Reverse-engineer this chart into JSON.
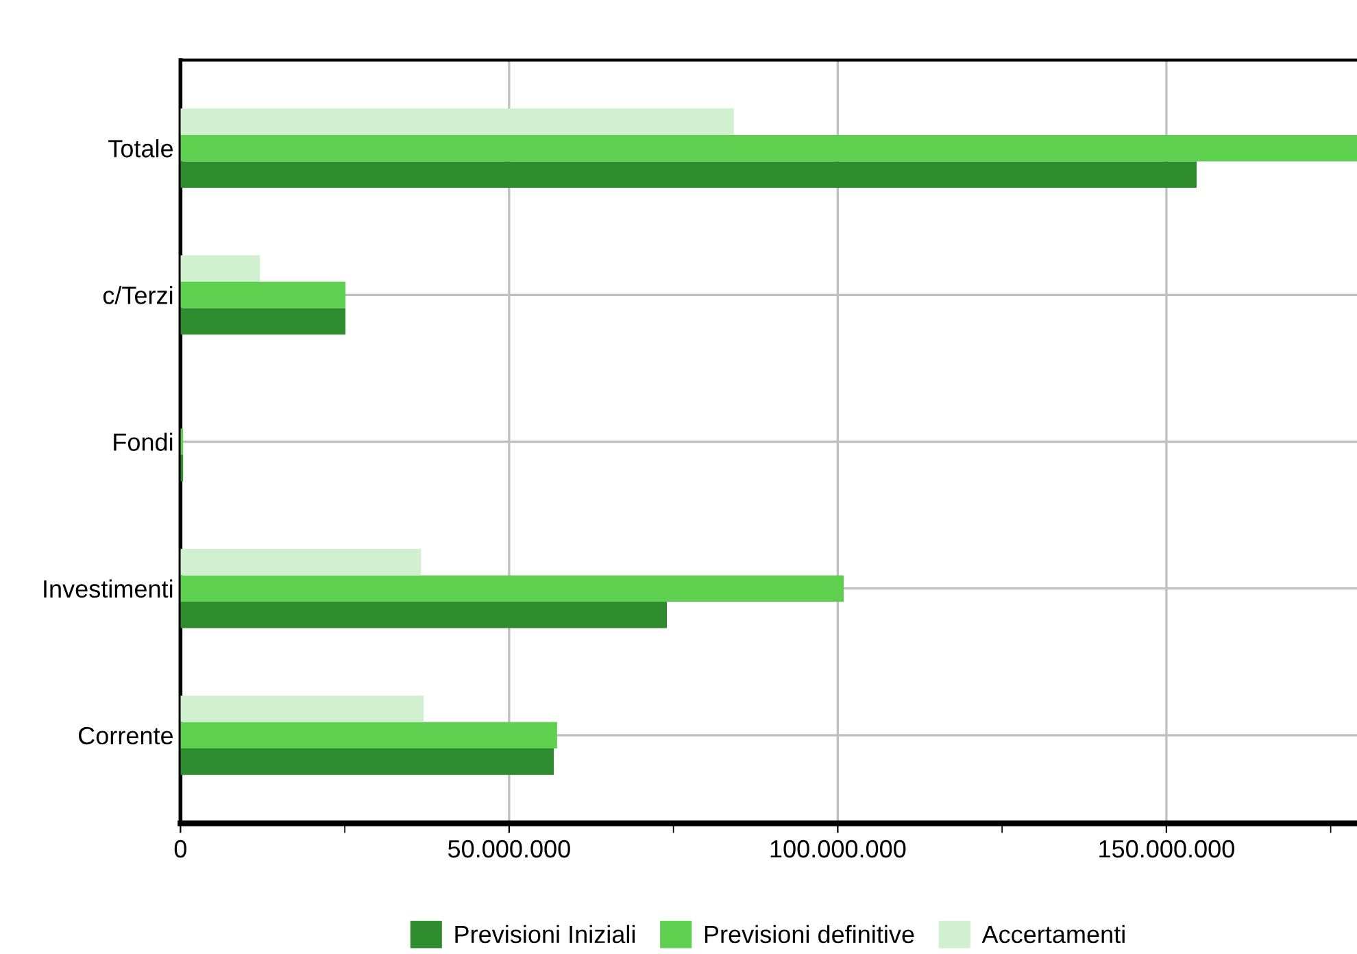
{
  "chart_data": {
    "type": "bar",
    "orientation": "horizontal",
    "categories": [
      "Totale",
      "c/Terzi",
      "Fondi",
      "Investimenti",
      "Corrente"
    ],
    "series": [
      {
        "name": "Previsioni Iniziali",
        "color": "#2e8b2e",
        "values": [
          154600000,
          25100000,
          400000,
          74000000,
          56800000
        ]
      },
      {
        "name": "Previsioni definitive",
        "color": "#5fcf50",
        "values": [
          179000000,
          25100000,
          400000,
          100900000,
          57300000
        ]
      },
      {
        "name": "Accertamenti",
        "color": "#d0f0d0",
        "values": [
          84200000,
          12100000,
          null,
          36600000,
          37000000
        ]
      }
    ],
    "xlim": [
      0,
      179000000
    ],
    "xticks": [
      0,
      {
        "value": 25000000,
        "label": null
      },
      {
        "value": 50000000,
        "label": "50.000.000"
      },
      {
        "value": 75000000,
        "label": null
      },
      {
        "value": 100000000,
        "label": "100.000.000"
      },
      {
        "value": 125000000,
        "label": null
      },
      {
        "value": 150000000,
        "label": "150.000.000"
      },
      {
        "value": 175000000,
        "label": null
      }
    ],
    "grid": true,
    "legend": "bottom"
  }
}
